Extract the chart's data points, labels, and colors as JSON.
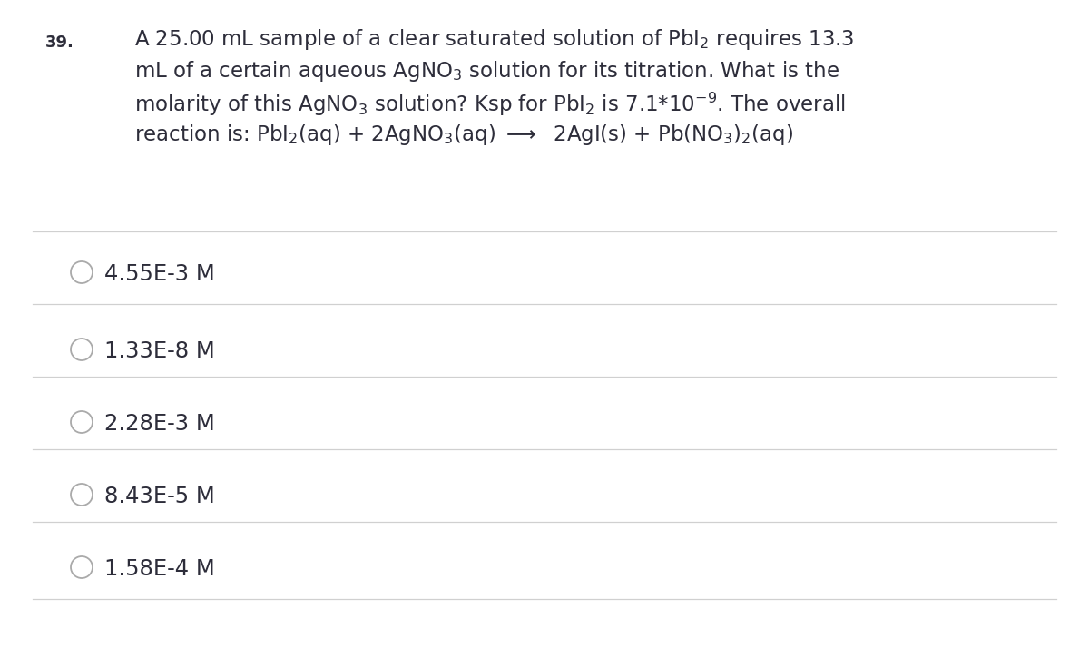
{
  "question_number": "39.",
  "choices": [
    "4.55E-3 M",
    "1.33E-8 M",
    "2.28E-3 M",
    "8.43E-5 M",
    "1.58E-4 M"
  ],
  "bg_color": "#ffffff",
  "text_color": "#2d2d3a",
  "line_color": "#d0d0d0",
  "circle_color": "#aaaaaa",
  "question_number_fontsize": 13,
  "question_fontsize": 16.5,
  "choice_fontsize": 17.5
}
